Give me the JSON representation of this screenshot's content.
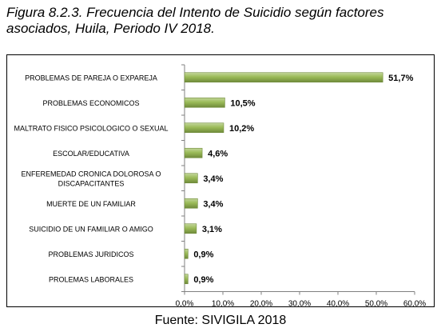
{
  "figure": {
    "title": "Figura 8.2.3. Frecuencia del Intento de Suicidio según factores asociados, Huila, Periodo IV 2018.",
    "source": "Fuente: SIVIGILA 2018"
  },
  "colors": {
    "bar_fill": "#9bbb59",
    "bar_top": "#c3d69b",
    "bar_dark": "#6f8a3a",
    "axis": "#808080"
  },
  "chart_data": {
    "type": "bar",
    "orientation": "horizontal",
    "categories": [
      [
        "PROBLEMAS DE PAREJA O EXPAREJA"
      ],
      [
        "PROBLEMAS ECONOMICOS"
      ],
      [
        "MALTRATO FISICO PSICOLOGICO O SEXUAL"
      ],
      [
        "ESCOLAR/EDUCATIVA"
      ],
      [
        "ENFEREMEDAD CRONICA DOLOROSA O",
        "DISCAPACITANTES"
      ],
      [
        "MUERTE DE UN FAMILIAR"
      ],
      [
        "SUICIDIO DE UN FAMILIAR O AMIGO"
      ],
      [
        "PROBLEMAS JURIDICOS"
      ],
      [
        "PROLEMAS LABORALES"
      ]
    ],
    "values": [
      51.7,
      10.5,
      10.2,
      4.6,
      3.4,
      3.4,
      3.1,
      0.9,
      0.9
    ],
    "data_labels": [
      "51,7%",
      "10,5%",
      "10,2%",
      "4,6%",
      "3,4%",
      "3,4%",
      "3,1%",
      "0,9%",
      "0,9%"
    ],
    "xlim": [
      0,
      60
    ],
    "x_ticks": [
      0,
      10,
      20,
      30,
      40,
      50,
      60
    ],
    "x_tick_labels": [
      "0,0%",
      "10,0%",
      "20,0%",
      "30,0%",
      "40,0%",
      "50,0%",
      "60,0%"
    ],
    "grid": false,
    "legend": "none"
  }
}
